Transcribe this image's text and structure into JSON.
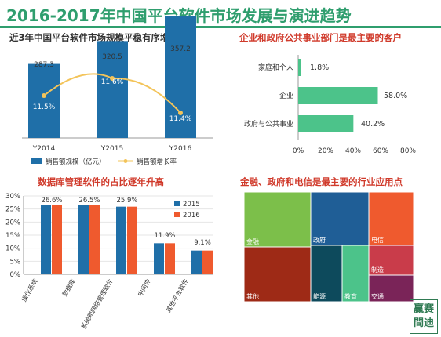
{
  "page": {
    "title": "2016-2017年中国平台软件市场发展与演进趋势"
  },
  "logo": {
    "line1": "赢赛",
    "line2": "問迪"
  },
  "chart_data": [
    {
      "type": "bar",
      "title": "近3年中国平台软件市场规模平稳有序增长",
      "categories": [
        "Y2014",
        "Y2015",
        "Y2016"
      ],
      "series": [
        {
          "name": "销售额规模（亿元）",
          "type": "bar",
          "values": [
            287.3,
            320.5,
            357.2
          ],
          "labels": [
            "287.3",
            "320.5",
            "357.2"
          ],
          "color": "#1f6fa8"
        },
        {
          "name": "销售额增长率",
          "type": "line",
          "values": [
            11.5,
            11.6,
            11.4
          ],
          "labels": [
            "11.5%",
            "11.6%",
            "11.4%"
          ],
          "color": "#f3c45a"
        }
      ]
    },
    {
      "type": "bar",
      "orientation": "horizontal",
      "title": "企业和政府公共事业部门是最主要的客户",
      "categories": [
        "家庭和个人",
        "企业",
        "政府与公共事业"
      ],
      "values": [
        1.8,
        58.0,
        40.2
      ],
      "labels": [
        "1.8%",
        "58.0%",
        "40.2%"
      ],
      "xlim": [
        0,
        80
      ],
      "xticks": [
        "0%",
        "20%",
        "40%",
        "60%",
        "80%"
      ],
      "color": "#4cc38a"
    },
    {
      "type": "bar",
      "title": "数据库管理软件的占比逐年升高",
      "categories": [
        "操作系统",
        "数据库",
        "系统和网络管理软件",
        "中间件",
        "其他平台软件"
      ],
      "series": [
        {
          "name": "2015",
          "values": [
            26.6,
            26.5,
            25.9,
            11.9,
            9.1
          ],
          "color": "#1f6fa8"
        },
        {
          "name": "2016",
          "values": [
            26.6,
            26.5,
            25.9,
            11.9,
            9.1
          ],
          "color": "#ef5a2e"
        }
      ],
      "labels": [
        "26.6%",
        "26.5%",
        "25.9%",
        "11.9%",
        "9.1%"
      ],
      "ylim": [
        0,
        30
      ],
      "yticks": [
        "0%",
        "5%",
        "10%",
        "15%",
        "20%",
        "25%",
        "30%"
      ]
    },
    {
      "type": "heatmap",
      "subtype": "treemap",
      "title": "金融、政府和电信是最主要的行业应用点",
      "cells": [
        {
          "label": "金融",
          "color": "#7cbf4a"
        },
        {
          "label": "其他",
          "color": "#9e2a16"
        },
        {
          "label": "政府",
          "color": "#1f5e96"
        },
        {
          "label": "电信",
          "color": "#ef5a2e"
        },
        {
          "label": "能源",
          "color": "#0d4a5c"
        },
        {
          "label": "教育",
          "color": "#4cc38a"
        },
        {
          "label": "制造",
          "color": "#c93c4a"
        },
        {
          "label": "交通",
          "color": "#7a2458"
        }
      ]
    }
  ]
}
